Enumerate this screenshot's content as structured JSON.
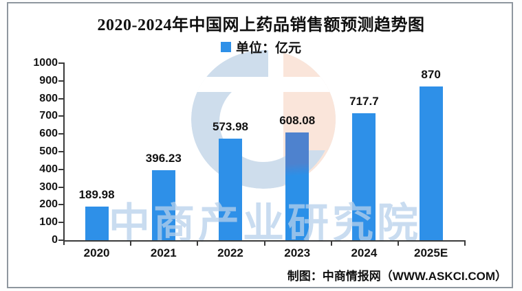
{
  "title": "2020-2024年中国网上药品销售额预测趋势图",
  "legend": {
    "label": "单位：亿元",
    "swatch_color": "#2E90E8"
  },
  "chart_data": {
    "type": "bar",
    "title": "2020-2024年中国网上药品销售额预测趋势图",
    "legend_entries": [
      "单位：亿元"
    ],
    "legend_position": "top-center",
    "categories": [
      "2020",
      "2021",
      "2022",
      "2023",
      "2024",
      "2025E"
    ],
    "values": [
      189.98,
      396.23,
      573.98,
      608.08,
      717.7,
      870
    ],
    "value_labels": [
      "189.98",
      "396.23",
      "573.98",
      "608.08",
      "717.7",
      "870"
    ],
    "xlabel": "",
    "ylabel": "",
    "ylim": [
      0,
      1000
    ],
    "ytick_step": 100,
    "ytick_labels": [
      "0",
      "100",
      "200",
      "300",
      "400",
      "500",
      "600",
      "700",
      "800",
      "900",
      "1000"
    ],
    "grid": false,
    "bar_color": "#2E90E8",
    "muted_bar": {
      "category": "2023",
      "overlay_color": "#4E82CE"
    }
  },
  "watermark": {
    "text": "中商产业研究院",
    "text_color": "#C6DAEF",
    "logo_blue": "#CEDDEC",
    "logo_peach": "#FAE5DA"
  },
  "credit": "制图：中商情报网（WWW.ASKCI.COM）"
}
